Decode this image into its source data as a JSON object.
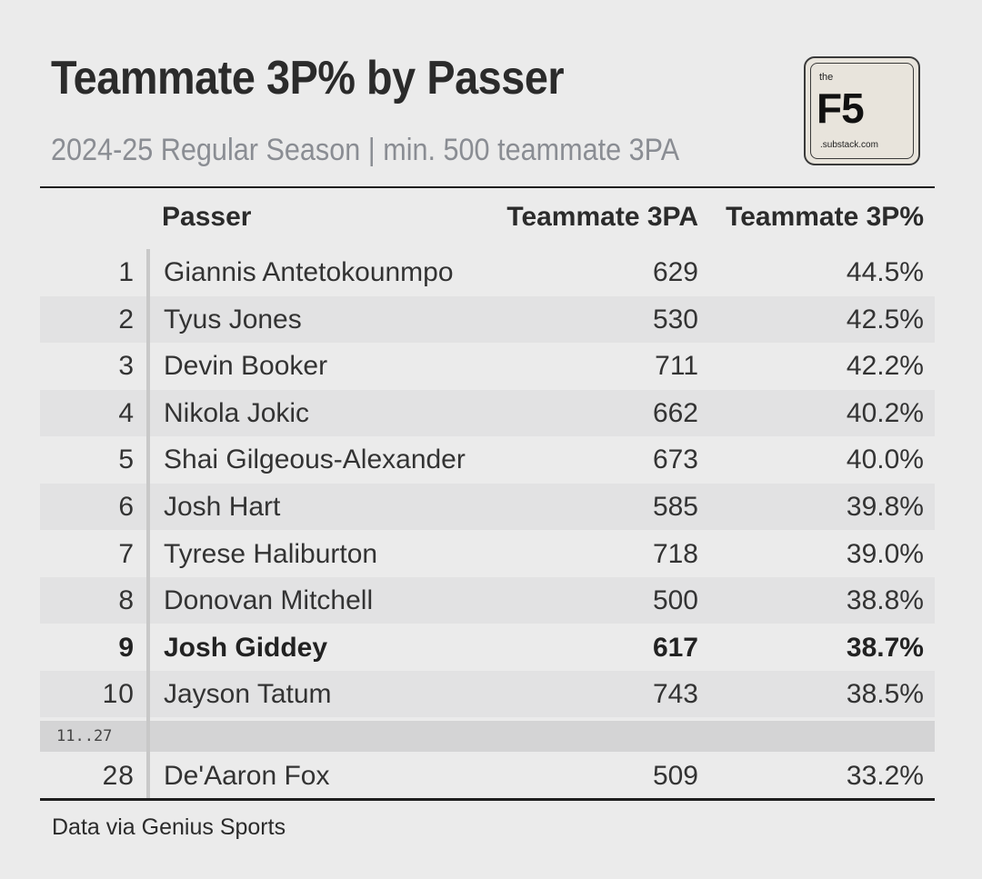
{
  "title": "Teammate 3P% by Passer",
  "subtitle": "2024-25 Regular Season | min. 500 teammate 3PA",
  "logo": {
    "the": "the",
    "main": "F5",
    "sub": ".substack.com"
  },
  "source": "Data via Genius Sports",
  "chart_data": {
    "type": "table",
    "title": "Teammate 3P% by Passer",
    "subtitle": "2024-25 Regular Season | min. 500 teammate 3PA",
    "columns": [
      "",
      "Passer",
      "Teammate 3PA",
      "Teammate 3P%"
    ],
    "rows": [
      {
        "rank": "1",
        "passer": "Giannis Antetokounmpo",
        "tpa": "629",
        "tpp": "44.5%",
        "highlight": false
      },
      {
        "rank": "2",
        "passer": "Tyus Jones",
        "tpa": "530",
        "tpp": "42.5%",
        "highlight": false
      },
      {
        "rank": "3",
        "passer": "Devin Booker",
        "tpa": "711",
        "tpp": "42.2%",
        "highlight": false
      },
      {
        "rank": "4",
        "passer": "Nikola Jokic",
        "tpa": "662",
        "tpp": "40.2%",
        "highlight": false
      },
      {
        "rank": "5",
        "passer": "Shai Gilgeous-Alexander",
        "tpa": "673",
        "tpp": "40.0%",
        "highlight": false
      },
      {
        "rank": "6",
        "passer": "Josh Hart",
        "tpa": "585",
        "tpp": "39.8%",
        "highlight": false
      },
      {
        "rank": "7",
        "passer": "Tyrese Haliburton",
        "tpa": "718",
        "tpp": "39.0%",
        "highlight": false
      },
      {
        "rank": "8",
        "passer": "Donovan Mitchell",
        "tpa": "500",
        "tpp": "38.8%",
        "highlight": false
      },
      {
        "rank": "9",
        "passer": "Josh Giddey",
        "tpa": "617",
        "tpp": "38.7%",
        "highlight": true
      },
      {
        "rank": "10",
        "passer": "Jayson Tatum",
        "tpa": "743",
        "tpp": "38.5%",
        "highlight": false
      }
    ],
    "gap_label": "11..27",
    "last_row": {
      "rank": "28",
      "passer": "De'Aaron Fox",
      "tpa": "509",
      "tpp": "33.2%",
      "highlight": false
    }
  }
}
